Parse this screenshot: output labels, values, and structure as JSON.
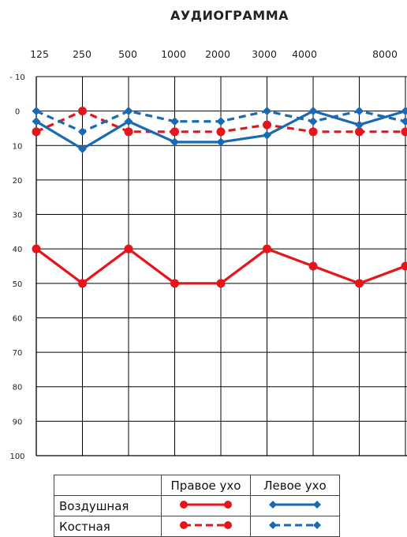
{
  "chart_data": {
    "type": "line",
    "title": "АУДИОГРАММА",
    "x_tick_labels": [
      "125",
      "250",
      "500",
      "1000",
      "2000",
      "3000",
      "4000",
      "8000"
    ],
    "y_tick_labels": [
      "- 10",
      "0",
      "10",
      "20",
      "30",
      "40",
      "50",
      "60",
      "70",
      "80",
      "90",
      "100"
    ],
    "ylim": [
      -10,
      100
    ],
    "y_inverted": true,
    "grid": true,
    "x": [
      "125",
      "250",
      "500",
      "1000",
      "2000",
      "3000",
      "4000",
      "6000",
      "8000"
    ],
    "series": [
      {
        "ear": "right",
        "conduction": "air",
        "color": "#e8141b",
        "line": "solid",
        "marker": "circle",
        "values": [
          40,
          50,
          40,
          50,
          50,
          40,
          45,
          50,
          45
        ]
      },
      {
        "ear": "right",
        "conduction": "bone",
        "color": "#e8141b",
        "line": "dashed",
        "marker": "circle",
        "values": [
          6,
          0,
          6,
          6,
          6,
          4,
          6,
          6,
          6
        ]
      },
      {
        "ear": "left",
        "conduction": "air",
        "color": "#1a6ab3",
        "line": "solid",
        "marker": "diamond",
        "values": [
          3,
          11,
          3,
          9,
          9,
          7,
          0,
          4,
          0
        ]
      },
      {
        "ear": "left",
        "conduction": "bone",
        "color": "#1a6ab3",
        "line": "dashed",
        "marker": "diamond",
        "values": [
          0,
          6,
          0,
          3,
          3,
          0,
          3,
          0,
          3
        ]
      }
    ]
  },
  "legend": {
    "right_ear": "Правое ухо",
    "left_ear": "Левое ухо",
    "air": "Воздушная",
    "bone": "Костная"
  }
}
